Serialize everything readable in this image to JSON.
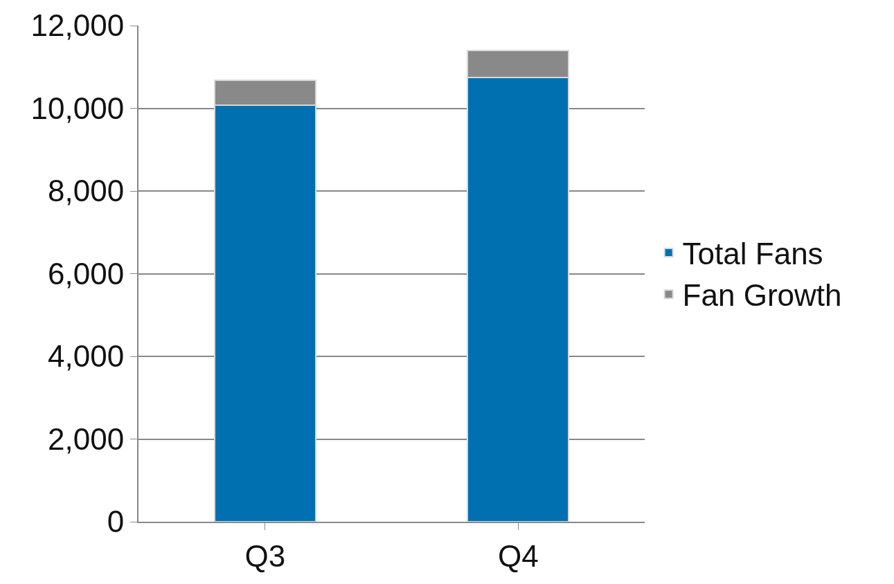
{
  "chart_data": {
    "type": "bar",
    "stacked": true,
    "categories": [
      "Q3",
      "Q4"
    ],
    "series": [
      {
        "name": "Total Fans",
        "color": "#0070b0",
        "values": [
          10080,
          10740
        ]
      },
      {
        "name": "Fan Growth",
        "color": "#898989",
        "values": [
          590,
          660
        ]
      }
    ],
    "ylim": [
      0,
      12000
    ],
    "yticks": [
      {
        "value": 0,
        "label": "0"
      },
      {
        "value": 2000,
        "label": "2,000"
      },
      {
        "value": 4000,
        "label": "4,000"
      },
      {
        "value": 6000,
        "label": "6,000"
      },
      {
        "value": 8000,
        "label": "8,000"
      },
      {
        "value": 10000,
        "label": "10,000"
      },
      {
        "value": 12000,
        "label": "12,000"
      }
    ],
    "grid": "y",
    "legend": "right"
  }
}
